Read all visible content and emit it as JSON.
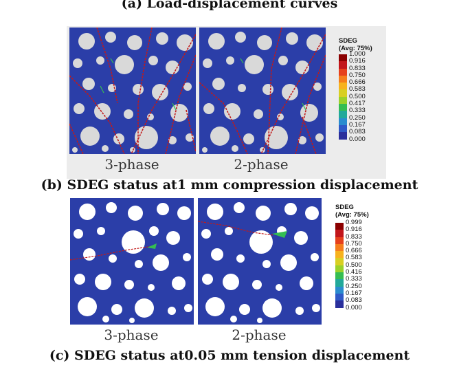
{
  "captions": {
    "a": "(a) Load-displacement curves",
    "b": "(b) SDEG status at1 mm compression displacement",
    "c": "(c) SDEG status at0.05 mm tension displacement"
  },
  "panels": {
    "b_left_label": "3-phase",
    "b_right_label": "2-phase",
    "c_left_label": "3-phase",
    "c_right_label": "2-phase"
  },
  "legend_b": {
    "title": "SDEG",
    "subtitle": "(Avg: 75%)",
    "values": [
      "1.000",
      "0.916",
      "0.833",
      "0.750",
      "0.666",
      "0.583",
      "0.500",
      "0.417",
      "0.333",
      "0.250",
      "0.167",
      "0.083",
      "0.000"
    ]
  },
  "legend_c": {
    "title": "SDEG",
    "subtitle": "(Avg: 75%)",
    "values": [
      "0.999",
      "0.916",
      "0.833",
      "0.750",
      "0.666",
      "0.583",
      "0.500",
      "0.416",
      "0.333",
      "0.250",
      "0.167",
      "0.083",
      "0.000"
    ]
  },
  "colors": {
    "matrix": "#2b3ea8",
    "aggregate_b": "#d9d9d9",
    "aggregate_c": "#ffffff",
    "crack": "#c21a1a",
    "scale": [
      "#8b0000",
      "#c2161b",
      "#e6401c",
      "#f57d1c",
      "#f7b21e",
      "#d8cf22",
      "#9ad12a",
      "#35bd52",
      "#22a99a",
      "#2a8ccf",
      "#2f59c7",
      "#2a2f9c",
      "#251a5c"
    ]
  }
}
